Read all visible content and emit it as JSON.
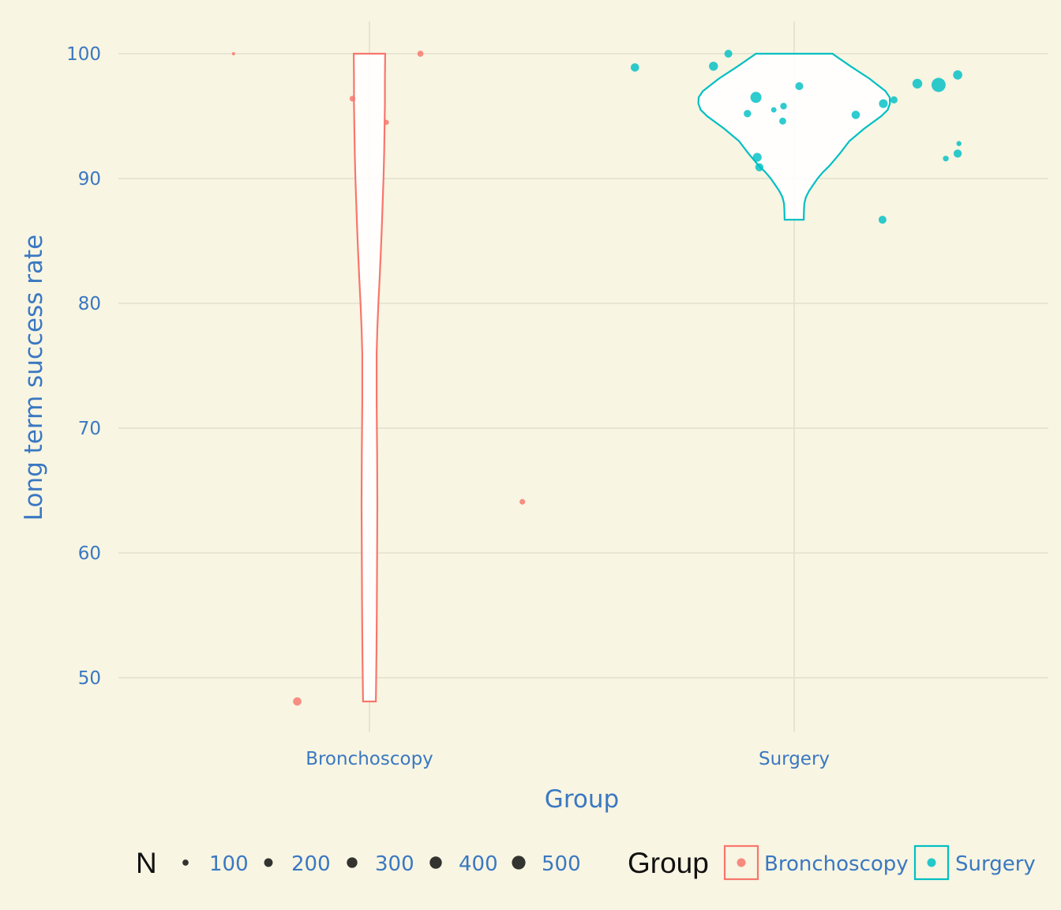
{
  "chart_data": {
    "type": "scatter",
    "subtype": "violin-with-jittered-points",
    "title": "",
    "xlabel": "Group",
    "ylabel": "Long term success rate",
    "categories": [
      "Bronchoscopy",
      "Surgery"
    ],
    "ylim": [
      45,
      102.5
    ],
    "yticks": [
      50,
      60,
      70,
      80,
      90,
      100
    ],
    "grid": true,
    "colors": {
      "Bronchoscopy": "#f8766d",
      "Surgery": "#00bfc4"
    },
    "series": [
      {
        "name": "Bronchoscopy",
        "points": [
          {
            "jitter": -0.32,
            "y": 100,
            "n": 30
          },
          {
            "jitter": 0.12,
            "y": 100,
            "n": 100
          },
          {
            "jitter": -0.04,
            "y": 96.4,
            "n": 90
          },
          {
            "jitter": 0.04,
            "y": 94.5,
            "n": 70
          },
          {
            "jitter": -0.17,
            "y": 48.1,
            "n": 190
          },
          {
            "jitter": 0.36,
            "y": 64.1,
            "n": 85
          }
        ],
        "violin_profile": [
          [
            48.1,
            0.03
          ],
          [
            49,
            0.031
          ],
          [
            52,
            0.033
          ],
          [
            56,
            0.035
          ],
          [
            60,
            0.036
          ],
          [
            64,
            0.037
          ],
          [
            68,
            0.036
          ],
          [
            72,
            0.034
          ],
          [
            76,
            0.034
          ],
          [
            78,
            0.037
          ],
          [
            80,
            0.042
          ],
          [
            82,
            0.048
          ],
          [
            84,
            0.053
          ],
          [
            86,
            0.058
          ],
          [
            88,
            0.062
          ],
          [
            90,
            0.066
          ],
          [
            92,
            0.069
          ],
          [
            94,
            0.071
          ],
          [
            96,
            0.073
          ],
          [
            98,
            0.073
          ],
          [
            100,
            0.074
          ]
        ]
      },
      {
        "name": "Surgery",
        "points": [
          {
            "jitter": -0.375,
            "y": 98.9,
            "n": 190
          },
          {
            "jitter": -0.19,
            "y": 99.0,
            "n": 220
          },
          {
            "jitter": -0.155,
            "y": 100,
            "n": 170
          },
          {
            "jitter": -0.09,
            "y": 96.5,
            "n": 330
          },
          {
            "jitter": -0.11,
            "y": 95.2,
            "n": 150
          },
          {
            "jitter": -0.048,
            "y": 95.5,
            "n": 80
          },
          {
            "jitter": -0.025,
            "y": 95.8,
            "n": 120
          },
          {
            "jitter": -0.027,
            "y": 94.6,
            "n": 130
          },
          {
            "jitter": 0.012,
            "y": 97.4,
            "n": 170
          },
          {
            "jitter": -0.087,
            "y": 91.7,
            "n": 210
          },
          {
            "jitter": -0.082,
            "y": 90.9,
            "n": 180
          },
          {
            "jitter": 0.145,
            "y": 95.1,
            "n": 190
          },
          {
            "jitter": 0.21,
            "y": 96.0,
            "n": 210
          },
          {
            "jitter": 0.235,
            "y": 96.3,
            "n": 140
          },
          {
            "jitter": 0.29,
            "y": 97.6,
            "n": 260
          },
          {
            "jitter": 0.34,
            "y": 97.5,
            "n": 540
          },
          {
            "jitter": 0.385,
            "y": 98.3,
            "n": 230
          },
          {
            "jitter": 0.208,
            "y": 86.7,
            "n": 170
          },
          {
            "jitter": 0.357,
            "y": 91.6,
            "n": 90
          },
          {
            "jitter": 0.385,
            "y": 92.0,
            "n": 180
          },
          {
            "jitter": 0.388,
            "y": 92.8,
            "n": 70
          }
        ],
        "violin_profile": [
          [
            86.7,
            0.045
          ],
          [
            87.5,
            0.046
          ],
          [
            88,
            0.048
          ],
          [
            88.5,
            0.055
          ],
          [
            89,
            0.07
          ],
          [
            89.5,
            0.09
          ],
          [
            90,
            0.11
          ],
          [
            90.5,
            0.135
          ],
          [
            91,
            0.165
          ],
          [
            92,
            0.215
          ],
          [
            93,
            0.26
          ],
          [
            94,
            0.33
          ],
          [
            95,
            0.41
          ],
          [
            95.5,
            0.44
          ],
          [
            96,
            0.451
          ],
          [
            96.5,
            0.45
          ],
          [
            97,
            0.43
          ],
          [
            98,
            0.355
          ],
          [
            99,
            0.265
          ],
          [
            100,
            0.18
          ]
        ]
      }
    ],
    "legend": {
      "placement": "bottom",
      "size_title": "N",
      "size_breaks": [
        100,
        200,
        300,
        400,
        500
      ],
      "size_labels": [
        "100",
        "200",
        "300",
        "400",
        "500"
      ],
      "color_title": "Group",
      "color_labels": [
        "Bronchoscopy",
        "Surgery"
      ]
    }
  }
}
